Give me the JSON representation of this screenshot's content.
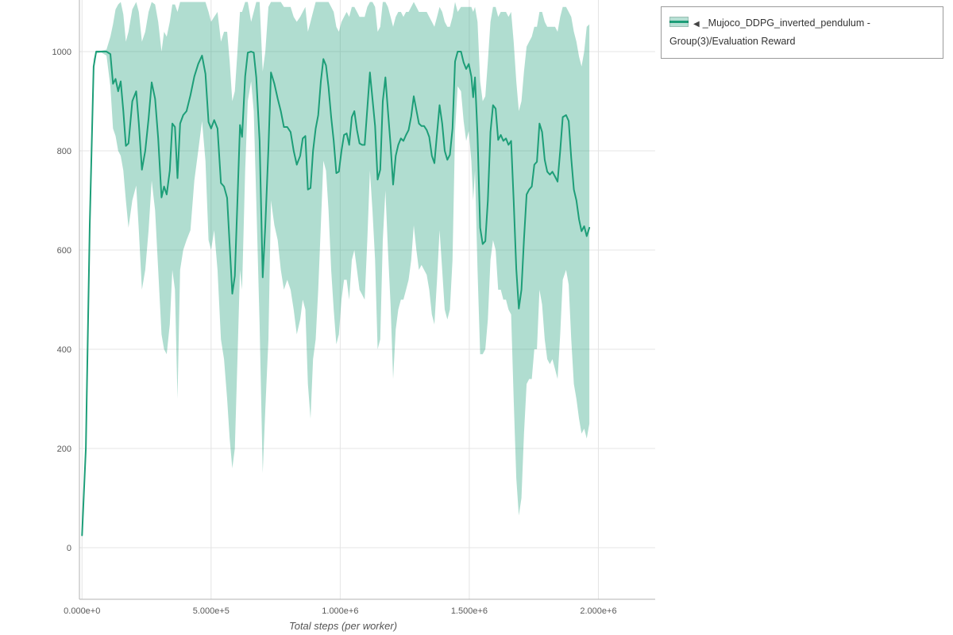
{
  "legend": {
    "marker": "◀",
    "label": "_Mujoco_DDPG_inverted_pendulum - Group(3)/Evaluation Reward"
  },
  "chart_data": {
    "type": "line",
    "title": "",
    "xlabel": "Total steps (per worker)",
    "ylabel": "",
    "grid": true,
    "legend_position": "top-right-outside",
    "x_unit_multiplier": 1000000,
    "xlim": [
      -0.01,
      2.22
    ],
    "ylim": [
      -104,
      1104
    ],
    "x_ticks": [
      {
        "value": 0.0,
        "label": "0.000e+0"
      },
      {
        "value": 0.5,
        "label": "5.000e+5"
      },
      {
        "value": 1.0,
        "label": "1.000e+6"
      },
      {
        "value": 1.5,
        "label": "1.500e+6"
      },
      {
        "value": 2.0,
        "label": "2.000e+6"
      }
    ],
    "y_ticks": [
      {
        "value": 0,
        "label": "0"
      },
      {
        "value": 200,
        "label": "200"
      },
      {
        "value": 400,
        "label": "400"
      },
      {
        "value": 600,
        "label": "600"
      },
      {
        "value": 800,
        "label": "800"
      },
      {
        "value": 1000,
        "label": "1000"
      }
    ],
    "series": [
      {
        "name": "_Mujoco_DDPG_inverted_pendulum - Group(3)/Evaluation Reward",
        "color": "#1d9e78",
        "band_opacity": 0.35,
        "points_format": [
          "x_in_1e6_steps",
          "mean",
          "band_low",
          "band_high"
        ],
        "points": [
          [
            0.0,
            25,
            20,
            30
          ],
          [
            0.015,
            200,
            190,
            210
          ],
          [
            0.03,
            650,
            630,
            670
          ],
          [
            0.045,
            970,
            955,
            985
          ],
          [
            0.055,
            1000,
            996,
            1002
          ],
          [
            0.075,
            1000,
            998,
            1002
          ],
          [
            0.095,
            1000,
            992,
            1004
          ],
          [
            0.11,
            995,
            930,
            1030
          ],
          [
            0.12,
            935,
            845,
            1055
          ],
          [
            0.13,
            945,
            830,
            1085
          ],
          [
            0.14,
            920,
            800,
            1095
          ],
          [
            0.15,
            940,
            790,
            1100
          ],
          [
            0.16,
            880,
            760,
            1075
          ],
          [
            0.17,
            810,
            700,
            1020
          ],
          [
            0.18,
            815,
            645,
            1040
          ],
          [
            0.195,
            900,
            700,
            1085
          ],
          [
            0.21,
            920,
            730,
            1100
          ],
          [
            0.22,
            855,
            640,
            1080
          ],
          [
            0.232,
            762,
            520,
            1020
          ],
          [
            0.245,
            800,
            560,
            1040
          ],
          [
            0.258,
            865,
            640,
            1080
          ],
          [
            0.27,
            938,
            740,
            1100
          ],
          [
            0.283,
            905,
            680,
            1095
          ],
          [
            0.295,
            825,
            560,
            1060
          ],
          [
            0.308,
            706,
            430,
            1000
          ],
          [
            0.318,
            728,
            400,
            1040
          ],
          [
            0.328,
            712,
            390,
            1030
          ],
          [
            0.34,
            760,
            450,
            1060
          ],
          [
            0.35,
            855,
            560,
            1095
          ],
          [
            0.36,
            848,
            520,
            1095
          ],
          [
            0.37,
            745,
            300,
            1080
          ],
          [
            0.38,
            855,
            560,
            1100
          ],
          [
            0.392,
            872,
            600,
            1100
          ],
          [
            0.405,
            880,
            620,
            1100
          ],
          [
            0.42,
            912,
            640,
            1100
          ],
          [
            0.435,
            950,
            740,
            1100
          ],
          [
            0.45,
            975,
            800,
            1100
          ],
          [
            0.465,
            992,
            860,
            1100
          ],
          [
            0.478,
            955,
            780,
            1100
          ],
          [
            0.49,
            858,
            620,
            1080
          ],
          [
            0.5,
            845,
            600,
            1060
          ],
          [
            0.512,
            862,
            640,
            1070
          ],
          [
            0.525,
            845,
            560,
            1080
          ],
          [
            0.538,
            735,
            420,
            1020
          ],
          [
            0.55,
            728,
            380,
            1040
          ],
          [
            0.562,
            705,
            300,
            1040
          ],
          [
            0.572,
            610,
            220,
            980
          ],
          [
            0.582,
            512,
            160,
            900
          ],
          [
            0.592,
            548,
            200,
            920
          ],
          [
            0.602,
            700,
            380,
            1000
          ],
          [
            0.612,
            852,
            560,
            1080
          ],
          [
            0.62,
            828,
            520,
            1080
          ],
          [
            0.632,
            950,
            760,
            1100
          ],
          [
            0.642,
            998,
            900,
            1100
          ],
          [
            0.655,
            1000,
            940,
            1060
          ],
          [
            0.665,
            998,
            880,
            1080
          ],
          [
            0.675,
            948,
            700,
            1100
          ],
          [
            0.688,
            820,
            450,
            1100
          ],
          [
            0.7,
            545,
            150,
            960
          ],
          [
            0.71,
            650,
            280,
            1000
          ],
          [
            0.722,
            805,
            420,
            1090
          ],
          [
            0.732,
            958,
            700,
            1100
          ],
          [
            0.745,
            935,
            650,
            1100
          ],
          [
            0.758,
            905,
            620,
            1100
          ],
          [
            0.77,
            880,
            560,
            1100
          ],
          [
            0.782,
            848,
            520,
            1090
          ],
          [
            0.795,
            848,
            540,
            1090
          ],
          [
            0.808,
            838,
            520,
            1090
          ],
          [
            0.82,
            800,
            480,
            1070
          ],
          [
            0.832,
            772,
            430,
            1060
          ],
          [
            0.845,
            790,
            460,
            1070
          ],
          [
            0.855,
            825,
            500,
            1080
          ],
          [
            0.865,
            830,
            480,
            1090
          ],
          [
            0.875,
            722,
            330,
            1040
          ],
          [
            0.885,
            725,
            260,
            1060
          ],
          [
            0.895,
            800,
            380,
            1080
          ],
          [
            0.905,
            845,
            420,
            1100
          ],
          [
            0.915,
            872,
            520,
            1100
          ],
          [
            0.925,
            940,
            650,
            1100
          ],
          [
            0.935,
            985,
            780,
            1100
          ],
          [
            0.945,
            972,
            760,
            1100
          ],
          [
            0.955,
            928,
            680,
            1100
          ],
          [
            0.965,
            868,
            560,
            1090
          ],
          [
            0.975,
            820,
            480,
            1080
          ],
          [
            0.985,
            755,
            410,
            1050
          ],
          [
            0.995,
            758,
            430,
            1040
          ],
          [
            1.005,
            800,
            500,
            1060
          ],
          [
            1.015,
            832,
            540,
            1070
          ],
          [
            1.025,
            835,
            540,
            1080
          ],
          [
            1.035,
            812,
            500,
            1070
          ],
          [
            1.045,
            868,
            580,
            1090
          ],
          [
            1.055,
            880,
            600,
            1090
          ],
          [
            1.065,
            842,
            560,
            1080
          ],
          [
            1.075,
            815,
            520,
            1070
          ],
          [
            1.085,
            812,
            510,
            1070
          ],
          [
            1.095,
            812,
            500,
            1070
          ],
          [
            1.105,
            885,
            620,
            1090
          ],
          [
            1.115,
            958,
            760,
            1100
          ],
          [
            1.125,
            905,
            680,
            1100
          ],
          [
            1.135,
            850,
            580,
            1090
          ],
          [
            1.145,
            742,
            400,
            1040
          ],
          [
            1.155,
            762,
            420,
            1050
          ],
          [
            1.165,
            900,
            620,
            1100
          ],
          [
            1.175,
            948,
            720,
            1100
          ],
          [
            1.185,
            880,
            600,
            1090
          ],
          [
            1.195,
            812,
            490,
            1070
          ],
          [
            1.205,
            732,
            340,
            1050
          ],
          [
            1.215,
            790,
            440,
            1070
          ],
          [
            1.225,
            812,
            480,
            1080
          ],
          [
            1.235,
            825,
            500,
            1080
          ],
          [
            1.245,
            820,
            500,
            1070
          ],
          [
            1.255,
            832,
            520,
            1080
          ],
          [
            1.265,
            842,
            540,
            1080
          ],
          [
            1.275,
            870,
            580,
            1090
          ],
          [
            1.285,
            910,
            650,
            1100
          ],
          [
            1.295,
            882,
            600,
            1090
          ],
          [
            1.305,
            855,
            560,
            1080
          ],
          [
            1.315,
            850,
            570,
            1080
          ],
          [
            1.325,
            850,
            560,
            1080
          ],
          [
            1.335,
            842,
            550,
            1080
          ],
          [
            1.345,
            828,
            520,
            1070
          ],
          [
            1.355,
            790,
            470,
            1060
          ],
          [
            1.365,
            775,
            450,
            1050
          ],
          [
            1.375,
            835,
            540,
            1070
          ],
          [
            1.385,
            892,
            640,
            1090
          ],
          [
            1.395,
            855,
            560,
            1080
          ],
          [
            1.405,
            800,
            480,
            1060
          ],
          [
            1.415,
            782,
            460,
            1050
          ],
          [
            1.425,
            792,
            480,
            1050
          ],
          [
            1.435,
            845,
            580,
            1070
          ],
          [
            1.445,
            980,
            840,
            1100
          ],
          [
            1.455,
            1000,
            930,
            1080
          ],
          [
            1.468,
            1000,
            920,
            1090
          ],
          [
            1.478,
            978,
            860,
            1090
          ],
          [
            1.488,
            965,
            820,
            1090
          ],
          [
            1.498,
            975,
            840,
            1090
          ],
          [
            1.508,
            950,
            780,
            1090
          ],
          [
            1.515,
            908,
            700,
            1080
          ],
          [
            1.522,
            948,
            760,
            1090
          ],
          [
            1.532,
            832,
            560,
            1060
          ],
          [
            1.542,
            645,
            390,
            940
          ],
          [
            1.552,
            612,
            390,
            900
          ],
          [
            1.562,
            618,
            400,
            910
          ],
          [
            1.572,
            700,
            460,
            980
          ],
          [
            1.582,
            838,
            580,
            1060
          ],
          [
            1.592,
            892,
            620,
            1090
          ],
          [
            1.602,
            885,
            600,
            1090
          ],
          [
            1.612,
            822,
            520,
            1070
          ],
          [
            1.622,
            832,
            520,
            1080
          ],
          [
            1.632,
            820,
            500,
            1080
          ],
          [
            1.642,
            825,
            500,
            1080
          ],
          [
            1.652,
            812,
            480,
            1070
          ],
          [
            1.662,
            820,
            470,
            1080
          ],
          [
            1.672,
            700,
            300,
            1020
          ],
          [
            1.682,
            562,
            140,
            940
          ],
          [
            1.692,
            482,
            65,
            880
          ],
          [
            1.702,
            520,
            100,
            900
          ],
          [
            1.712,
            622,
            230,
            960
          ],
          [
            1.722,
            712,
            330,
            1010
          ],
          [
            1.732,
            722,
            340,
            1020
          ],
          [
            1.742,
            728,
            340,
            1030
          ],
          [
            1.752,
            772,
            400,
            1050
          ],
          [
            1.762,
            778,
            400,
            1050
          ],
          [
            1.772,
            855,
            520,
            1080
          ],
          [
            1.782,
            838,
            490,
            1080
          ],
          [
            1.792,
            782,
            420,
            1060
          ],
          [
            1.802,
            758,
            380,
            1050
          ],
          [
            1.812,
            752,
            370,
            1050
          ],
          [
            1.822,
            758,
            380,
            1050
          ],
          [
            1.832,
            748,
            360,
            1050
          ],
          [
            1.842,
            738,
            340,
            1040
          ],
          [
            1.852,
            800,
            430,
            1070
          ],
          [
            1.862,
            868,
            540,
            1090
          ],
          [
            1.875,
            872,
            560,
            1090
          ],
          [
            1.885,
            860,
            530,
            1080
          ],
          [
            1.895,
            785,
            420,
            1070
          ],
          [
            1.905,
            722,
            330,
            1040
          ],
          [
            1.915,
            700,
            300,
            1020
          ],
          [
            1.925,
            662,
            260,
            990
          ],
          [
            1.935,
            638,
            230,
            970
          ],
          [
            1.945,
            648,
            240,
            1000
          ],
          [
            1.955,
            628,
            220,
            1050
          ],
          [
            1.965,
            645,
            250,
            1055
          ]
        ]
      }
    ]
  }
}
